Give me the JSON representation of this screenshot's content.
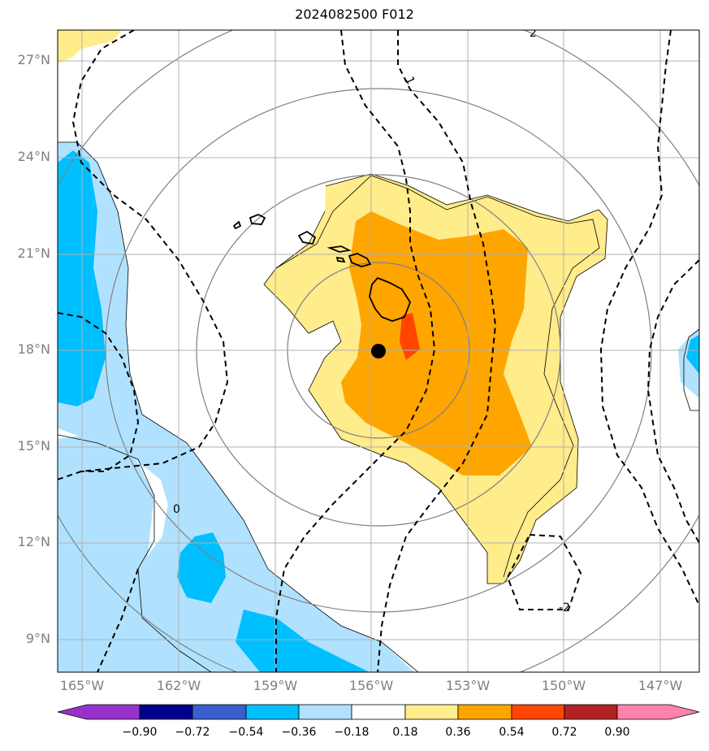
{
  "title": "2024082500 F012",
  "lat_labels": [
    "27°N",
    "24°N",
    "21°N",
    "18°N",
    "15°N",
    "12°N",
    "9°N"
  ],
  "lon_labels": [
    "165°W",
    "162°W",
    "159°W",
    "156°W",
    "153°W",
    "150°W",
    "147°W"
  ],
  "contour_labels": [
    "1",
    "0",
    "-2",
    "2"
  ],
  "colorbar": {
    "tick_labels": [
      "−0.90",
      "−0.72",
      "−0.54",
      "−0.36",
      "−0.18",
      "0.18",
      "0.36",
      "0.54",
      "0.72",
      "0.90"
    ],
    "colors": [
      "#9932CC",
      "#00008B",
      "#3A5FCD",
      "#00BFFF",
      "#B0E2FF",
      "#FFFFFF",
      "#FFEC8B",
      "#FFA500",
      "#FF4500",
      "#B22222",
      "#FF82AB"
    ]
  },
  "storm_center": {
    "lat": 18.0,
    "lon": -155.8
  },
  "map_extent": {
    "lon": [
      -165.8,
      -145.8
    ],
    "lat": [
      8.0,
      28.0
    ]
  }
}
